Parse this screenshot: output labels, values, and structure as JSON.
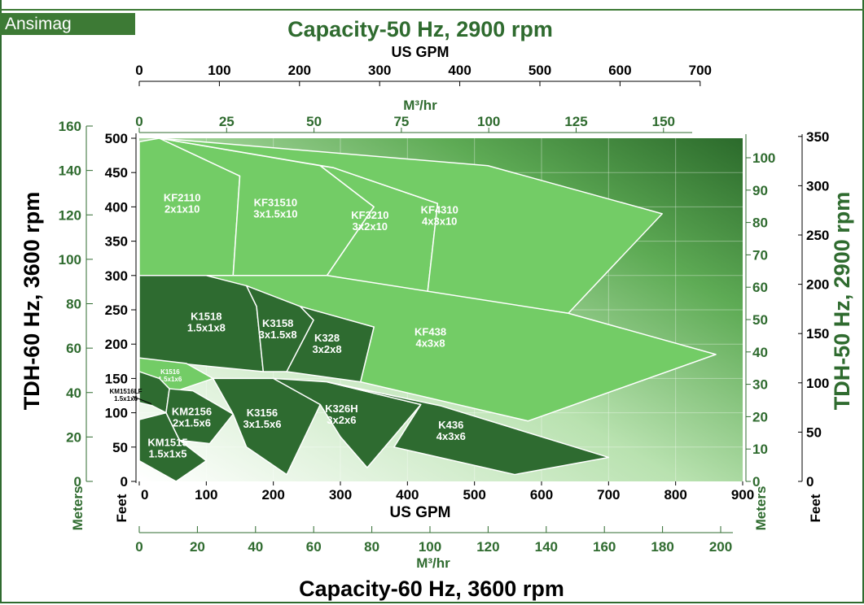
{
  "brand": "Ansimag",
  "colors": {
    "dark_green": "#2f6b2f",
    "mid_green": "#3d7a35",
    "light_green": "#7fd072",
    "region_light": "#73cc66",
    "region_dark": "#2e6b30"
  },
  "chart_data": {
    "type": "area",
    "title_top": "Capacity-50 Hz, 2900 rpm",
    "title_bottom": "Capacity-60 Hz, 3600 rpm",
    "left_title": "TDH-60 Hz, 3600 rpm",
    "right_title": "TDH-50 Hz, 2900 rpm",
    "axes": {
      "x_bottom_gpm": {
        "label": "US GPM",
        "ticks": [
          "0",
          "100",
          "200",
          "300",
          "400",
          "500",
          "600",
          "700",
          "800",
          "900"
        ],
        "range": [
          0,
          900
        ]
      },
      "x_bottom_m3": {
        "label": "M³/hr",
        "ticks": [
          "0",
          "20",
          "40",
          "60",
          "80",
          "100",
          "120",
          "140",
          "160",
          "180",
          "200"
        ]
      },
      "x_top_gpm": {
        "label": "US GPM",
        "ticks": [
          "0",
          "100",
          "200",
          "300",
          "400",
          "500",
          "600",
          "700"
        ]
      },
      "x_top_m3": {
        "label": "M³/hr",
        "ticks": [
          "0",
          "25",
          "50",
          "75",
          "100",
          "125",
          "150"
        ]
      },
      "y_left_feet": {
        "label": "Feet",
        "ticks": [
          "0",
          "50",
          "100",
          "150",
          "200",
          "250",
          "300",
          "350",
          "400",
          "450",
          "500"
        ],
        "range": [
          0,
          500
        ]
      },
      "y_left_meters": {
        "label": "Meters",
        "ticks": [
          "0",
          "20",
          "40",
          "60",
          "80",
          "100",
          "120",
          "140",
          "160"
        ]
      },
      "y_right_meters": {
        "label": "Meters",
        "ticks": [
          "0",
          "10",
          "20",
          "30",
          "40",
          "50",
          "60",
          "70",
          "80",
          "90",
          "100"
        ]
      },
      "y_right_feet": {
        "label": "Feet",
        "ticks": [
          "0",
          "50",
          "100",
          "150",
          "200",
          "250",
          "300",
          "350"
        ]
      }
    },
    "regions": [
      {
        "name": "KF2110",
        "size": "2x1x10",
        "shade": "light",
        "points": [
          [
            0,
            300
          ],
          [
            0,
            495
          ],
          [
            30,
            500
          ],
          [
            150,
            445
          ],
          [
            140,
            300
          ]
        ]
      },
      {
        "name": "KF31510",
        "size": "3x1.5x10",
        "shade": "light",
        "points": [
          [
            140,
            300
          ],
          [
            150,
            445
          ],
          [
            30,
            500
          ],
          [
            270,
            460
          ],
          [
            350,
            400
          ],
          [
            280,
            300
          ]
        ]
      },
      {
        "name": "KF3210",
        "size": "3x2x10",
        "shade": "light",
        "points": [
          [
            280,
            300
          ],
          [
            350,
            400
          ],
          [
            270,
            460
          ],
          [
            290,
            457
          ],
          [
            445,
            405
          ],
          [
            430,
            275
          ]
        ]
      },
      {
        "name": "KF4310",
        "size": "4x3x10",
        "shade": "light",
        "points": [
          [
            430,
            275
          ],
          [
            445,
            405
          ],
          [
            290,
            457
          ],
          [
            30,
            500
          ],
          [
            520,
            460
          ],
          [
            780,
            390
          ],
          [
            640,
            245
          ]
        ]
      },
      {
        "name": "KF438",
        "size": "4x3x8",
        "shade": "light",
        "points": [
          [
            0,
            300
          ],
          [
            280,
            300
          ],
          [
            640,
            245
          ],
          [
            860,
            185
          ],
          [
            580,
            88
          ],
          [
            330,
            145
          ],
          [
            350,
            225
          ]
        ]
      },
      {
        "name": "K1518",
        "size": "1.5x1x8",
        "shade": "dark",
        "points": [
          [
            0,
            300
          ],
          [
            100,
            300
          ],
          [
            160,
            285
          ],
          [
            175,
            255
          ],
          [
            185,
            160
          ],
          [
            80,
            170
          ],
          [
            0,
            178
          ]
        ]
      },
      {
        "name": "K3158",
        "size": "3x1.5x8",
        "shade": "dark",
        "points": [
          [
            160,
            285
          ],
          [
            240,
            255
          ],
          [
            260,
            235
          ],
          [
            220,
            160
          ],
          [
            185,
            160
          ],
          [
            175,
            255
          ]
        ]
      },
      {
        "name": "K328",
        "size": "3x2x8",
        "shade": "dark",
        "points": [
          [
            240,
            255
          ],
          [
            350,
            225
          ],
          [
            330,
            145
          ],
          [
            220,
            160
          ],
          [
            260,
            235
          ]
        ]
      },
      {
        "name": "K1516",
        "size": "1.5x1x6",
        "shade": "light",
        "points": [
          [
            0,
            180
          ],
          [
            70,
            172
          ],
          [
            110,
            150
          ],
          [
            50,
            130
          ],
          [
            0,
            150
          ]
        ]
      },
      {
        "name": "KM1516LF",
        "size": "1.5x1x6",
        "shade": "dark",
        "points": [
          [
            0,
            160
          ],
          [
            30,
            150
          ],
          [
            45,
            135
          ],
          [
            40,
            100
          ],
          [
            20,
            110
          ],
          [
            0,
            115
          ]
        ]
      },
      {
        "name": "KM2156",
        "size": "2x1.5x6",
        "shade": "dark",
        "points": [
          [
            40,
            100
          ],
          [
            45,
            135
          ],
          [
            80,
            132
          ],
          [
            140,
            98
          ],
          [
            105,
            55
          ],
          [
            60,
            60
          ]
        ]
      },
      {
        "name": "KM1515",
        "size": "1.5x1x5",
        "shade": "dark",
        "points": [
          [
            0,
            90
          ],
          [
            40,
            100
          ],
          [
            60,
            60
          ],
          [
            100,
            30
          ],
          [
            55,
            0
          ],
          [
            0,
            30
          ]
        ]
      },
      {
        "name": "K3156",
        "size": "3x1.5x6",
        "shade": "dark",
        "points": [
          [
            140,
            98
          ],
          [
            110,
            150
          ],
          [
            200,
            150
          ],
          [
            270,
            112
          ],
          [
            220,
            10
          ],
          [
            160,
            50
          ]
        ]
      },
      {
        "name": "K326H",
        "size": "3x2x6",
        "shade": "dark",
        "points": [
          [
            270,
            112
          ],
          [
            200,
            150
          ],
          [
            280,
            145
          ],
          [
            420,
            112
          ],
          [
            340,
            20
          ],
          [
            300,
            65
          ]
        ]
      },
      {
        "name": "K436",
        "size": "4x3x6",
        "shade": "dark",
        "points": [
          [
            420,
            112
          ],
          [
            280,
            145
          ],
          [
            450,
            110
          ],
          [
            700,
            35
          ],
          [
            560,
            10
          ],
          [
            380,
            50
          ]
        ]
      }
    ]
  }
}
